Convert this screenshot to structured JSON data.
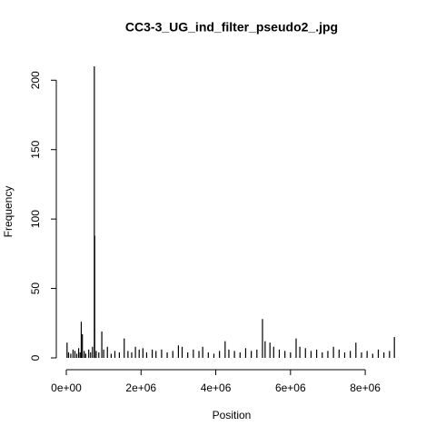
{
  "chart_data": {
    "type": "line",
    "style": "h",
    "title": "CC3-3_UG_ind_filter_pseudo2_.jpg",
    "x_label": "Position",
    "y_label": "Frequency",
    "color": "#000000",
    "x": [
      20000,
      60000,
      120000,
      180000,
      230000,
      280000,
      330000,
      370000,
      400000,
      430000,
      480000,
      520000,
      600000,
      650000,
      700000,
      750000,
      760000,
      800000,
      870000,
      950000,
      1000000,
      1100000,
      1200000,
      1300000,
      1420000,
      1550000,
      1650000,
      1750000,
      1850000,
      1950000,
      2050000,
      2150000,
      2300000,
      2400000,
      2550000,
      2700000,
      2850000,
      3000000,
      3100000,
      3250000,
      3400000,
      3550000,
      3650000,
      3800000,
      3950000,
      4100000,
      4250000,
      4350000,
      4500000,
      4650000,
      4800000,
      4950000,
      5100000,
      5250000,
      5320000,
      5450000,
      5550000,
      5700000,
      5850000,
      6000000,
      6150000,
      6250000,
      6400000,
      6550000,
      6700000,
      6850000,
      7000000,
      7150000,
      7300000,
      7450000,
      7600000,
      7750000,
      7900000,
      8050000,
      8200000,
      8350000,
      8500000,
      8650000,
      8780000
    ],
    "values": [
      11,
      4,
      3,
      6,
      5,
      3,
      7,
      4,
      26,
      17,
      5,
      3,
      6,
      4,
      8,
      210,
      88,
      5,
      4,
      19,
      6,
      8,
      3,
      5,
      4,
      14,
      5,
      4,
      8,
      6,
      7,
      4,
      6,
      5,
      6,
      4,
      5,
      9,
      8,
      4,
      6,
      5,
      8,
      4,
      3,
      5,
      12,
      6,
      5,
      4,
      7,
      5,
      6,
      28,
      12,
      11,
      8,
      6,
      5,
      4,
      14,
      8,
      7,
      5,
      6,
      4,
      5,
      8,
      6,
      4,
      5,
      11,
      4,
      5,
      3,
      6,
      4,
      5,
      15
    ],
    "xlim": [
      0,
      8800000
    ],
    "ylim": [
      0,
      210
    ],
    "xticks": [
      {
        "value": 0,
        "label": "0e+00"
      },
      {
        "value": 2000000,
        "label": "2e+06"
      },
      {
        "value": 4000000,
        "label": "4e+06"
      },
      {
        "value": 6000000,
        "label": "6e+06"
      },
      {
        "value": 8000000,
        "label": "8e+06"
      }
    ],
    "yticks": [
      0,
      50,
      100,
      150,
      200
    ]
  }
}
